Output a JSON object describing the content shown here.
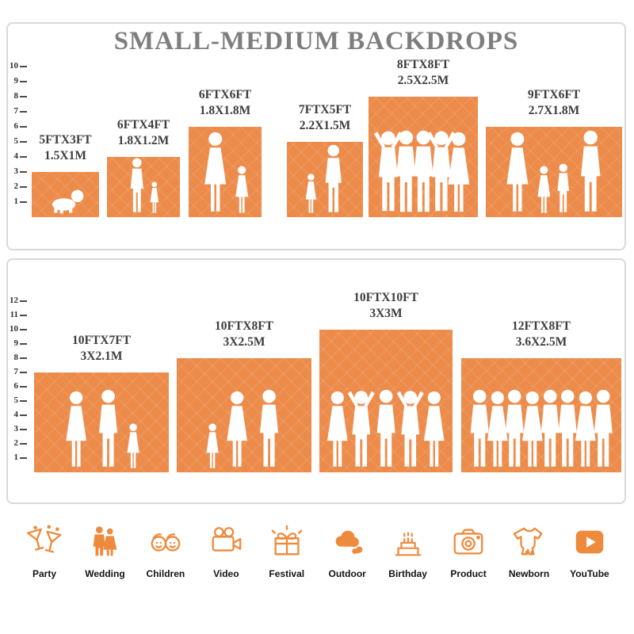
{
  "title": "SMALL-MEDIUM BACKDROPS",
  "colors": {
    "bar": "#EC8B4A",
    "icon": "#EE8A3C",
    "title": "#7E7E7E",
    "label": "#3D3D3D"
  },
  "chart_data": [
    {
      "type": "bar",
      "title": "SMALL-MEDIUM BACKDROPS",
      "panel": "top",
      "unit": "feet",
      "ylim": [
        0,
        10
      ],
      "ruler_ticks": [
        1,
        2,
        3,
        4,
        5,
        6,
        7,
        8,
        9,
        10
      ],
      "bars": [
        {
          "size_ft": "5FTX3FT",
          "size_m": "1.5X1M",
          "width_ft": 5,
          "height_ft": 3,
          "figures": [
            "baby"
          ]
        },
        {
          "size_ft": "6FTX4FT",
          "size_m": "1.8X1.2M",
          "width_ft": 6,
          "height_ft": 4,
          "figures": [
            "adult",
            "childdress"
          ]
        },
        {
          "size_ft": "6FTX6FT",
          "size_m": "1.8X1.8M",
          "width_ft": 6,
          "height_ft": 6,
          "figures": [
            "dress",
            "childdress"
          ]
        },
        {
          "size_ft": "7FTX5FT",
          "size_m": "2.2X1.5M",
          "width_ft": 7,
          "height_ft": 5,
          "figures": [
            "childdress",
            "adult"
          ]
        },
        {
          "size_ft": "8FTX8FT",
          "size_m": "2.5X2.5M",
          "width_ft": 8,
          "height_ft": 8,
          "figures": [
            "armsup",
            "adult",
            "adult",
            "armsup",
            "dress"
          ]
        },
        {
          "size_ft": "9FTX6FT",
          "size_m": "2.7X1.8M",
          "width_ft": 9,
          "height_ft": 6,
          "figures": [
            "dress",
            "childdress",
            "child",
            "adult"
          ]
        }
      ]
    },
    {
      "type": "bar",
      "panel": "bottom",
      "unit": "feet",
      "ylim": [
        0,
        12
      ],
      "ruler_ticks": [
        1,
        2,
        3,
        4,
        5,
        6,
        7,
        8,
        9,
        10,
        11,
        12
      ],
      "bars": [
        {
          "size_ft": "10FTX7FT",
          "size_m": "3X2.1M",
          "width_ft": 10,
          "height_ft": 7,
          "figures": [
            "dress",
            "adult",
            "childdress"
          ]
        },
        {
          "size_ft": "10FTX8FT",
          "size_m": "3X2.5M",
          "width_ft": 10,
          "height_ft": 8,
          "figures": [
            "childdress",
            "dress",
            "adult"
          ]
        },
        {
          "size_ft": "10FTX10FT",
          "size_m": "3X3M",
          "width_ft": 10,
          "height_ft": 10,
          "figures": [
            "dress",
            "armsup",
            "adult",
            "armsup",
            "dress"
          ]
        },
        {
          "size_ft": "12FTX8FT",
          "size_m": "3.6X2.5M",
          "width_ft": 12,
          "height_ft": 8,
          "figures": [
            "adult",
            "dress",
            "adult",
            "dress",
            "adult",
            "adult",
            "dress",
            "adult"
          ]
        }
      ]
    }
  ],
  "categories": [
    {
      "label": "Party",
      "icon": "party-icon"
    },
    {
      "label": "Wedding",
      "icon": "wedding-icon"
    },
    {
      "label": "Children",
      "icon": "children-icon"
    },
    {
      "label": "Video",
      "icon": "video-icon"
    },
    {
      "label": "Festival",
      "icon": "festival-icon"
    },
    {
      "label": "Outdoor",
      "icon": "outdoor-icon"
    },
    {
      "label": "Birthday",
      "icon": "birthday-icon"
    },
    {
      "label": "Product",
      "icon": "product-icon"
    },
    {
      "label": "Newborn",
      "icon": "newborn-icon"
    },
    {
      "label": "YouTube",
      "icon": "youtube-icon"
    }
  ]
}
